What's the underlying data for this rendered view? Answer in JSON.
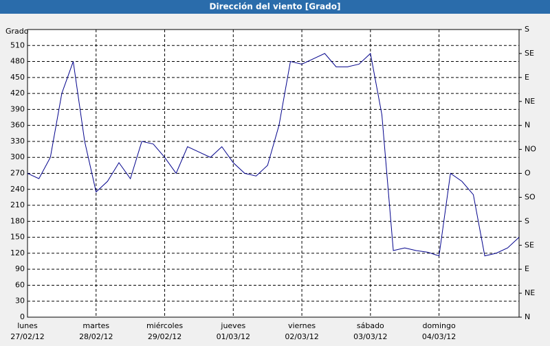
{
  "chart_data": {
    "type": "line",
    "title": "Dirección del viento [Grado]",
    "y_label": "Grado",
    "categories": [
      "lunes",
      null,
      null,
      null,
      null,
      null,
      "martes",
      null,
      null,
      null,
      null,
      null,
      "miércoles",
      null,
      null,
      null,
      null,
      null,
      "jueves",
      null,
      null,
      null,
      null,
      null,
      "viernes",
      null,
      null,
      null,
      null,
      null,
      "sábado",
      null,
      null,
      null,
      null,
      null,
      "domingo",
      null,
      null,
      null,
      null,
      null,
      null,
      null
    ],
    "category_dates": [
      "27/02/12",
      null,
      null,
      null,
      null,
      null,
      "28/02/12",
      null,
      null,
      null,
      null,
      null,
      "29/02/12",
      null,
      null,
      null,
      null,
      null,
      "01/03/12",
      null,
      null,
      null,
      null,
      null,
      "02/03/12",
      null,
      null,
      null,
      null,
      null,
      "03/03/12",
      null,
      null,
      null,
      null,
      null,
      "04/03/12",
      null,
      null,
      null,
      null,
      null,
      null,
      null
    ],
    "series": [
      {
        "name": "Dirección del viento",
        "color": "#00008b",
        "values": [
          270,
          260,
          300,
          420,
          480,
          330,
          235,
          255,
          290,
          260,
          330,
          325,
          300,
          270,
          320,
          310,
          300,
          320,
          290,
          270,
          265,
          285,
          360,
          480,
          475,
          485,
          495,
          470,
          470,
          475,
          495,
          380,
          125,
          130,
          125,
          122,
          115,
          270,
          255,
          230,
          115,
          120,
          130,
          150
        ]
      }
    ],
    "ylim": [
      0,
      540
    ],
    "yticks": [
      0,
      30,
      60,
      90,
      120,
      150,
      180,
      210,
      240,
      270,
      300,
      330,
      360,
      390,
      420,
      450,
      480,
      510
    ],
    "y2lim": [
      0,
      540
    ],
    "y2ticks": [
      {
        "value": 0,
        "label": "N"
      },
      {
        "value": 45,
        "label": "NE"
      },
      {
        "value": 90,
        "label": "E"
      },
      {
        "value": 135,
        "label": "SE"
      },
      {
        "value": 180,
        "label": "S"
      },
      {
        "value": 225,
        "label": "SO"
      },
      {
        "value": 270,
        "label": "O"
      },
      {
        "value": 315,
        "label": "NO"
      },
      {
        "value": 360,
        "label": "N"
      },
      {
        "value": 405,
        "label": "NE"
      },
      {
        "value": 450,
        "label": "E"
      },
      {
        "value": 495,
        "label": "SE"
      },
      {
        "value": 540,
        "label": "S"
      }
    ],
    "grid": true
  }
}
